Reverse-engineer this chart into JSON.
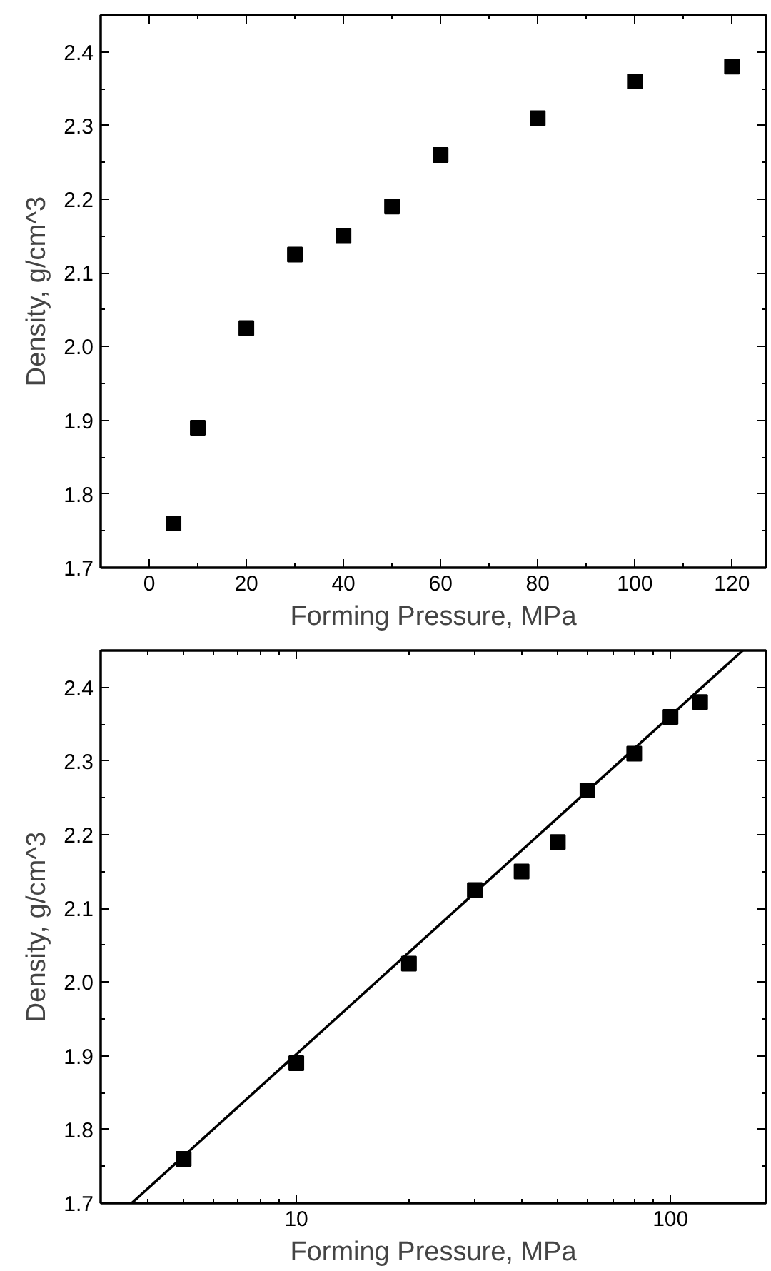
{
  "chart_data": [
    {
      "type": "scatter",
      "xlabel": "Forming Pressure, MPa",
      "ylabel": "Density, g/cm^3",
      "grid": false,
      "xlim": [
        -10,
        127
      ],
      "ylim": [
        1.7,
        2.45
      ],
      "xticks": [
        0,
        20,
        40,
        60,
        80,
        100,
        120
      ],
      "yticks": [
        1.7,
        1.8,
        1.9,
        {
          "value": 2.0,
          "label": "2.0"
        },
        2.1,
        2.2,
        2.3,
        2.4
      ],
      "series": [
        {
          "color": "#000000",
          "marker": "square",
          "x": [
            5,
            10,
            20,
            30,
            40,
            50,
            60,
            80,
            100,
            120
          ],
          "values": [
            1.76,
            1.89,
            2.025,
            2.125,
            2.15,
            2.19,
            2.26,
            2.31,
            2.36,
            2.38
          ]
        }
      ]
    },
    {
      "type": "scatter",
      "xlabel": "Forming Pressure, MPa",
      "ylabel": "Density, g/cm^3",
      "grid": false,
      "log": "x",
      "xlim": [
        3.0,
        180
      ],
      "ylim": [
        1.7,
        2.45
      ],
      "xticks": [
        10,
        100
      ],
      "yticks": [
        1.7,
        1.8,
        1.9,
        {
          "value": 2.0,
          "label": "2.0"
        },
        2.1,
        2.2,
        2.3,
        2.4
      ],
      "series": [
        {
          "color": "#000000",
          "marker": "square",
          "x": [
            5,
            10,
            20,
            30,
            40,
            50,
            60,
            80,
            100,
            120
          ],
          "values": [
            1.76,
            1.89,
            2.025,
            2.125,
            2.15,
            2.19,
            2.26,
            2.31,
            2.36,
            2.38
          ]
        },
        {
          "type": "line",
          "color": "#000000",
          "x": [
            3.63,
            156
          ],
          "values": [
            1.7,
            2.45
          ]
        }
      ]
    }
  ]
}
